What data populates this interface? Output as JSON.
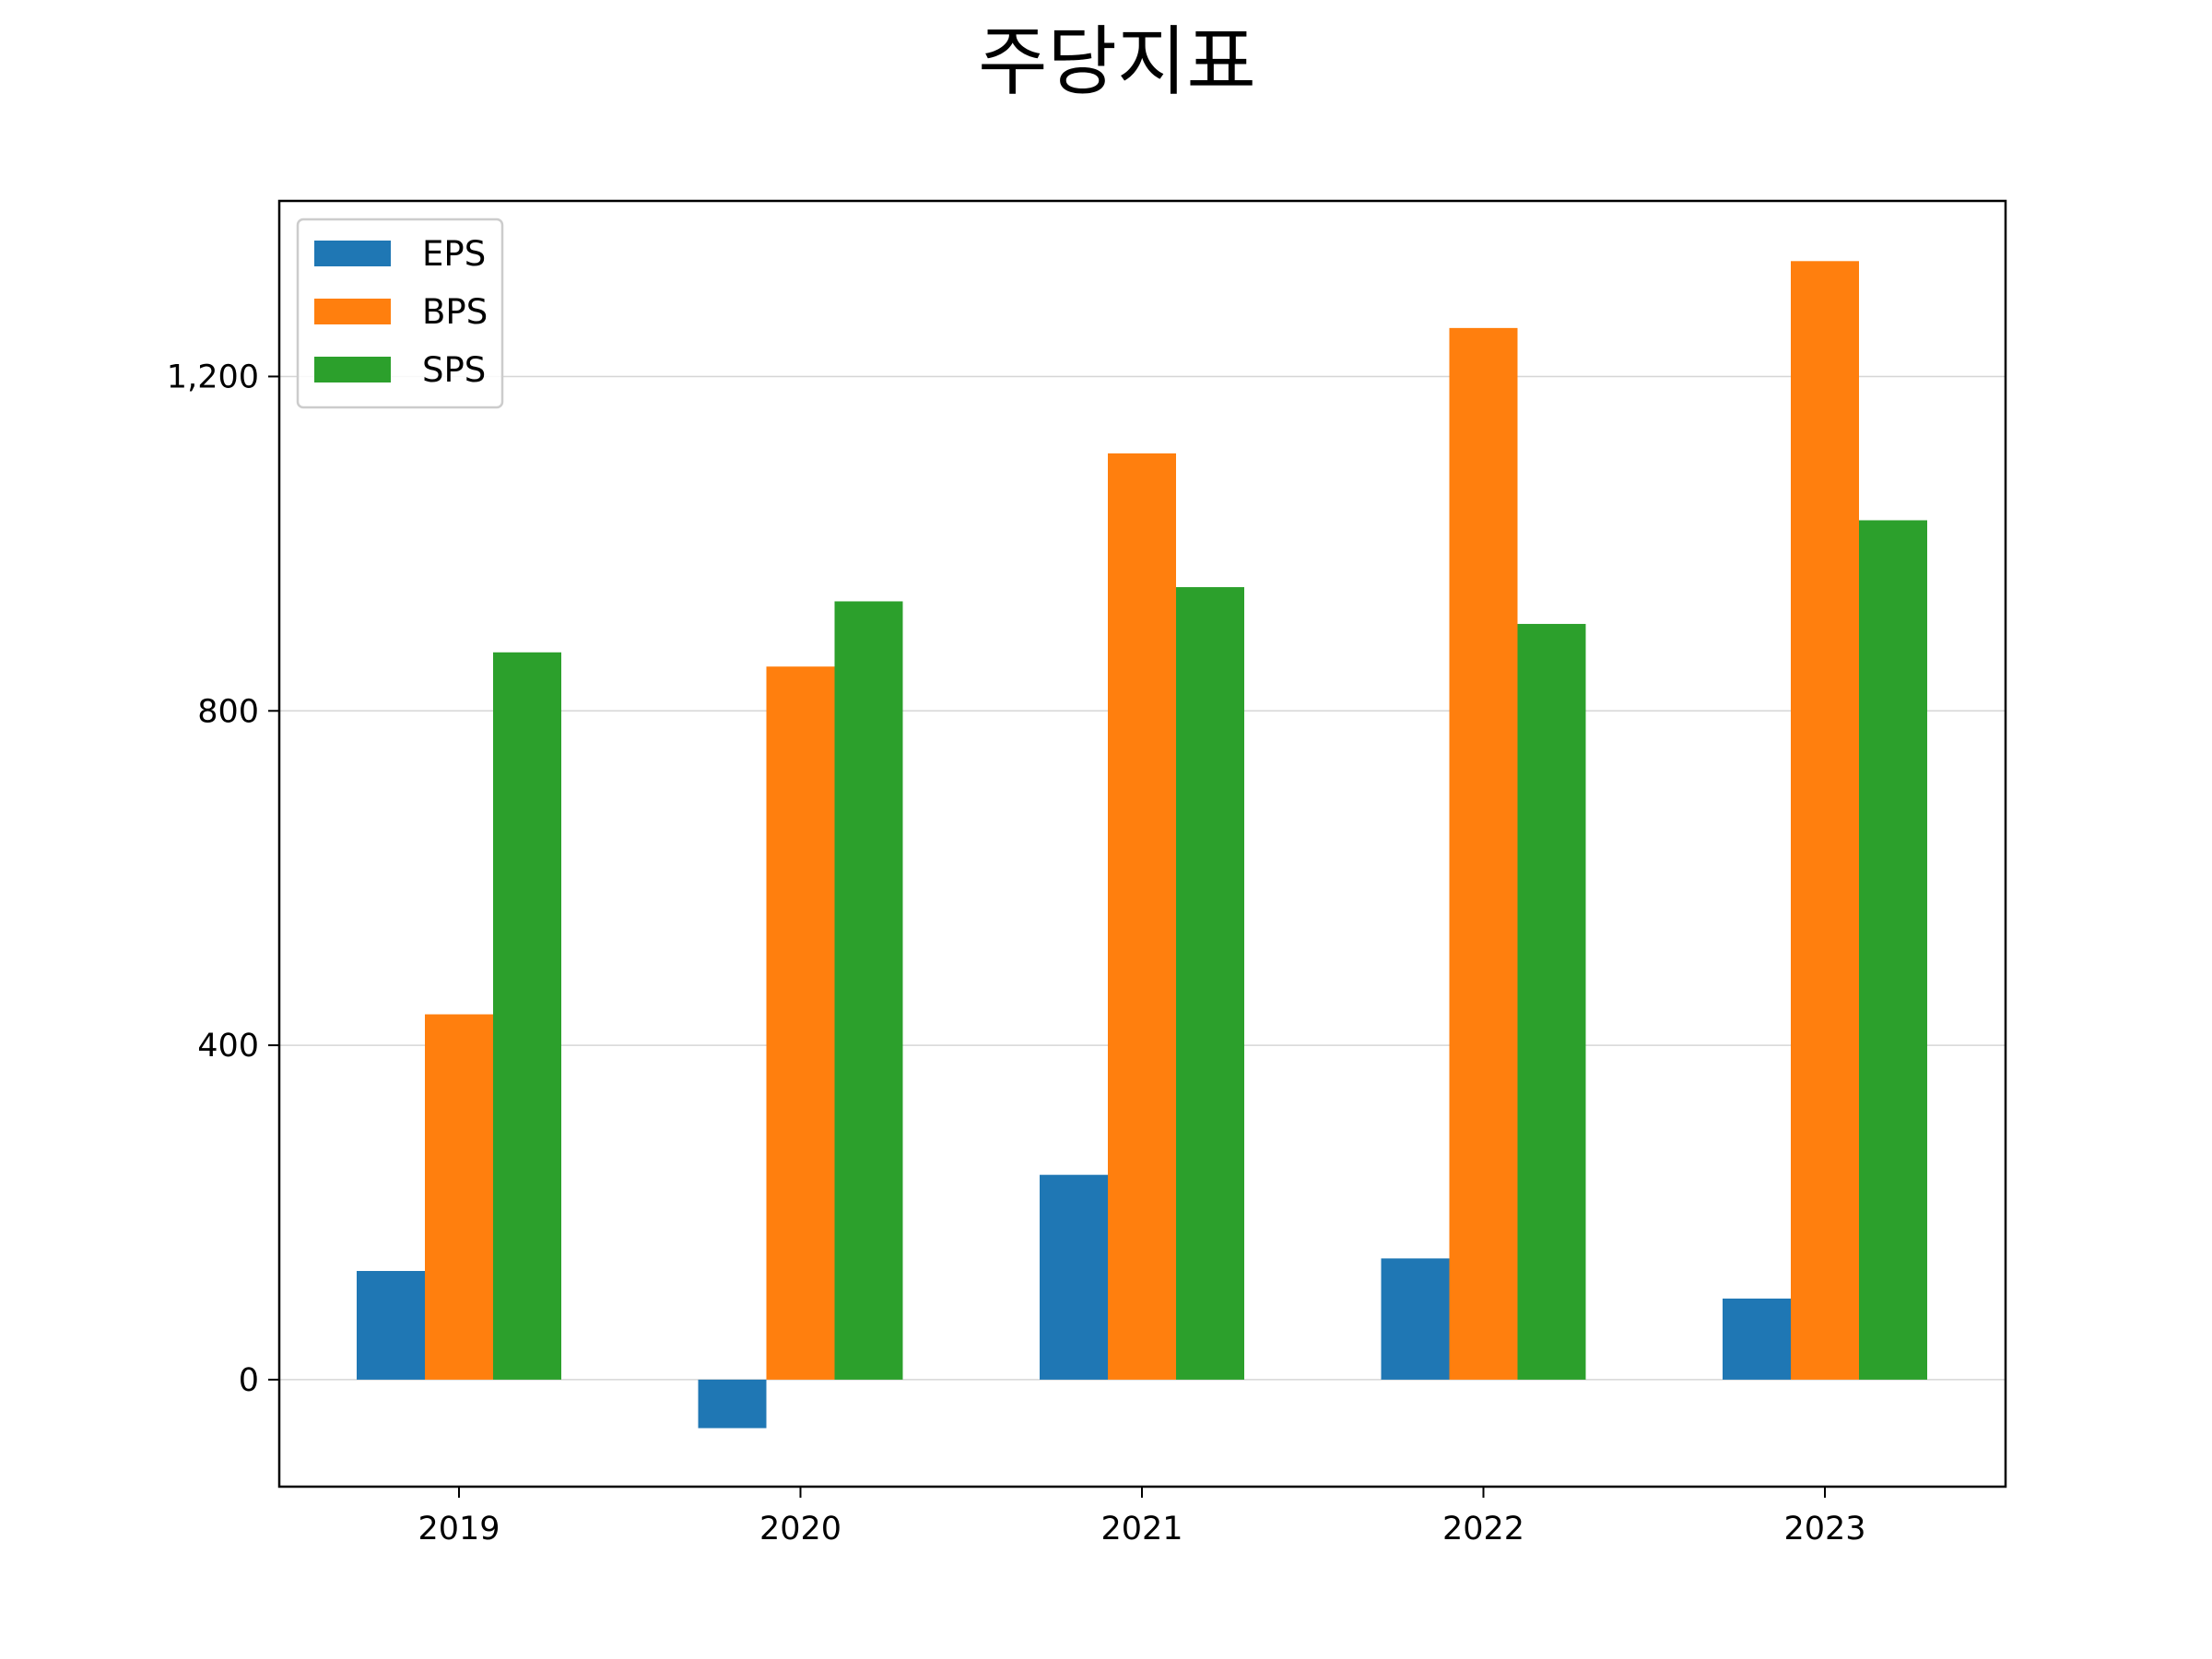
{
  "chart_data": {
    "type": "bar",
    "title": "주당지표",
    "xlabel": "",
    "ylabel": "",
    "categories": [
      "2019",
      "2020",
      "2021",
      "2022",
      "2023"
    ],
    "series": [
      {
        "name": "EPS",
        "color": "#1f77b4",
        "values": [
          130,
          -58,
          245,
          145,
          97
        ]
      },
      {
        "name": "BPS",
        "color": "#ff7f0e",
        "values": [
          437,
          853,
          1108,
          1258,
          1338
        ]
      },
      {
        "name": "SPS",
        "color": "#2ca02c",
        "values": [
          870,
          931,
          948,
          904,
          1028
        ]
      }
    ],
    "ylim": [
      -128,
      1410
    ],
    "yticks": [
      0,
      400,
      800,
      1200
    ],
    "ytick_labels": [
      "0",
      "400",
      "800",
      "1,200"
    ],
    "grid": "y-major",
    "legend": "upper-left"
  }
}
